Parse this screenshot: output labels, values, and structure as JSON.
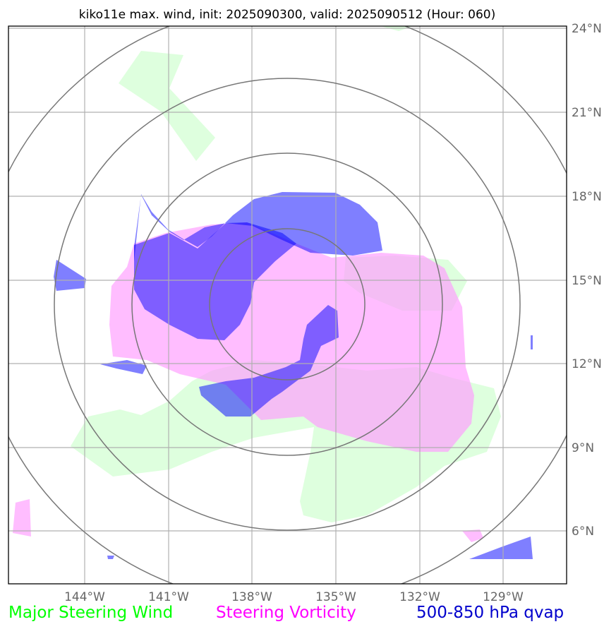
{
  "title": "kiko11e max. wind, init: 2025090300, valid: 2025090512 (Hour: 060)",
  "lat_labels": [
    "24°N",
    "21°N",
    "18°N",
    "15°N",
    "12°N",
    "9°N",
    "6°N"
  ],
  "lon_labels": [
    "144°W",
    "141°W",
    "138°W",
    "135°W",
    "132°W",
    "129°W"
  ],
  "legend": {
    "wind": "Major Steering Wind",
    "vorticity": "Steering Vorticity",
    "qvap": "500-850 hPa qvap"
  },
  "colors": {
    "wind": "#00ff00",
    "vorticity": "#ff00ff",
    "qvap": "#0000cc",
    "wind_fill": "#ccffcc",
    "vorticity_fill": "#ff99ff",
    "qvap_fill": "#0000ff"
  },
  "map": {
    "lon_range": [
      -147,
      -127
    ],
    "lat_range": [
      4,
      24
    ],
    "range_rings": 4,
    "gridlines": true
  }
}
